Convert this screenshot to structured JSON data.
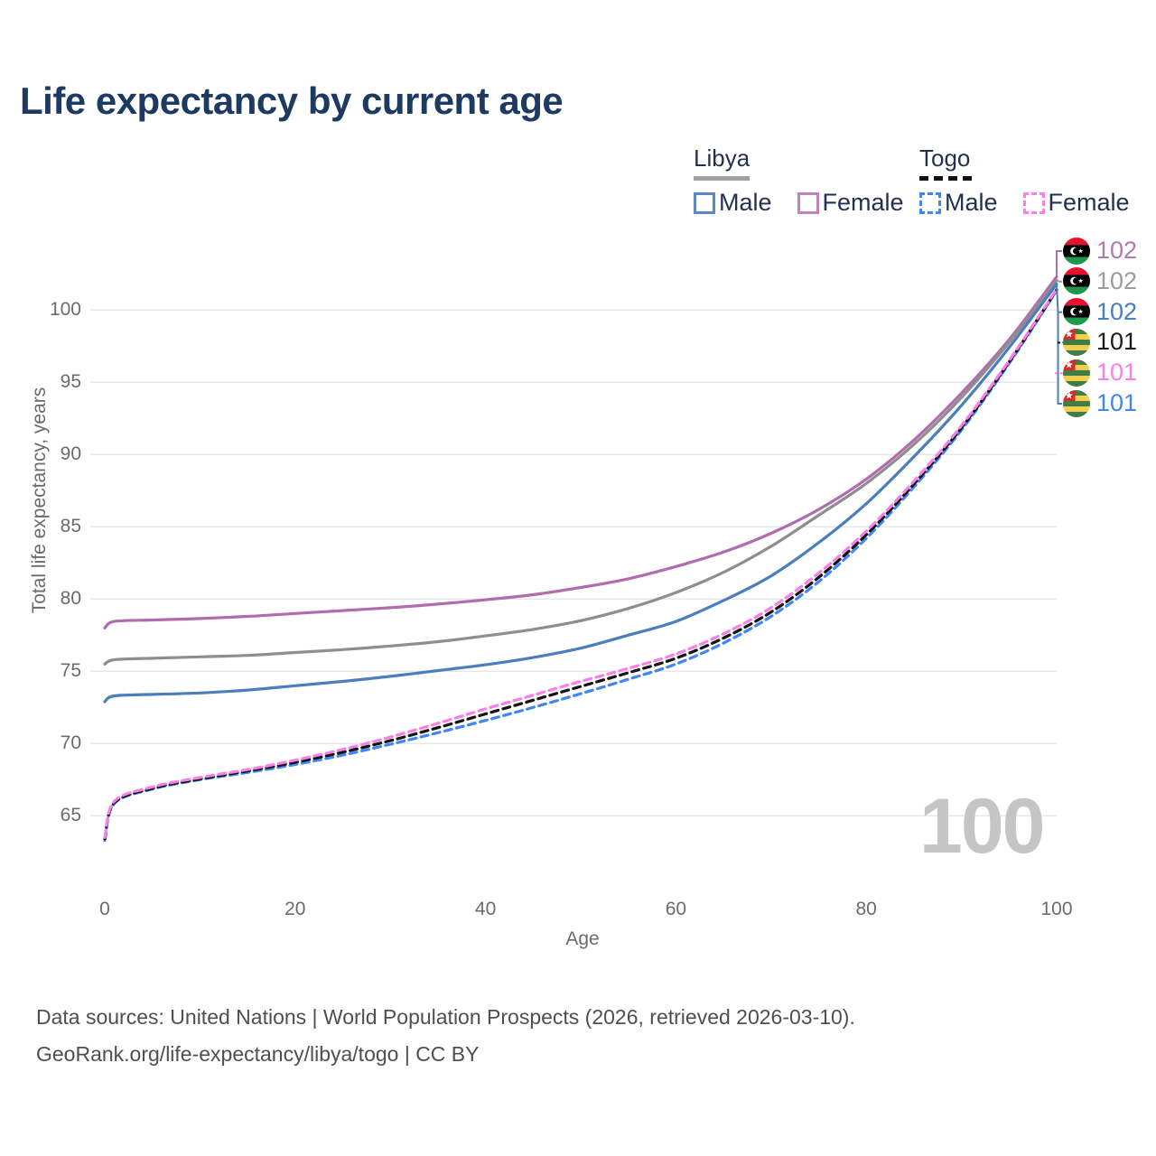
{
  "title": "Life expectancy by current age",
  "legend": {
    "libya": {
      "label": "Libya",
      "male": "Male",
      "female": "Female"
    },
    "togo": {
      "label": "Togo",
      "male": "Male",
      "female": "Female"
    }
  },
  "watermark": "100",
  "end_labels": [
    {
      "country": "libya",
      "value": "102",
      "color": "#b279ae"
    },
    {
      "country": "libya",
      "value": "102",
      "color": "#9c9c9c"
    },
    {
      "country": "libya",
      "value": "102",
      "color": "#4a7ebc"
    },
    {
      "country": "togo",
      "value": "101",
      "color": "#1c1c1c"
    },
    {
      "country": "togo",
      "value": "101",
      "color": "#fc7ee6"
    },
    {
      "country": "togo",
      "value": "101",
      "color": "#4286f5"
    }
  ],
  "footer": {
    "line1": "Data sources: United Nations | World Population Prospects (2026, retrieved 2026-03-10).",
    "line2": "GeoRank.org/life-expectancy/libya/togo | CC BY"
  },
  "colors": {
    "grid": "#e8e8e8",
    "axis_text": "#6b6b6b",
    "title_text": "#1d3a63"
  },
  "chart_data": {
    "type": "line",
    "title": "Life expectancy by current age",
    "xlabel": "Age",
    "ylabel": "Total life expectancy, years",
    "xlim": [
      0,
      100
    ],
    "ylim": [
      62,
      104
    ],
    "x_ticks": [
      0,
      20,
      40,
      60,
      80,
      100
    ],
    "y_ticks": [
      65,
      70,
      75,
      80,
      85,
      90,
      95,
      100
    ],
    "grid": "horizontal",
    "legend_position": "top-right",
    "x": [
      0,
      1,
      5,
      10,
      15,
      20,
      25,
      30,
      35,
      40,
      45,
      50,
      55,
      60,
      65,
      70,
      75,
      80,
      85,
      90,
      95,
      100
    ],
    "series": [
      {
        "name": "Libya Female",
        "style": "solid",
        "color": "#b06cae",
        "values": [
          78.0,
          78.45,
          78.55,
          78.65,
          78.8,
          79.0,
          79.2,
          79.4,
          79.65,
          79.95,
          80.3,
          80.8,
          81.4,
          82.25,
          83.25,
          84.55,
          86.2,
          88.3,
          91.0,
          94.25,
          97.95,
          102.3
        ]
      },
      {
        "name": "Libya Both sexes",
        "style": "solid",
        "color": "#8e8e8e",
        "values": [
          75.5,
          75.8,
          75.9,
          76.0,
          76.1,
          76.3,
          76.5,
          76.75,
          77.05,
          77.45,
          77.9,
          78.5,
          79.35,
          80.45,
          81.85,
          83.65,
          85.8,
          88.0,
          90.7,
          93.95,
          97.75,
          102.05
        ]
      },
      {
        "name": "Libya Male",
        "style": "solid",
        "color": "#4a7ebc",
        "values": [
          72.9,
          73.3,
          73.4,
          73.5,
          73.7,
          74.0,
          74.3,
          74.65,
          75.05,
          75.45,
          75.95,
          76.6,
          77.5,
          78.45,
          79.9,
          81.6,
          83.9,
          86.6,
          89.85,
          93.4,
          97.4,
          101.8
        ]
      },
      {
        "name": "Togo Male",
        "style": "dashed",
        "color": "#4286f5",
        "values": [
          63.3,
          65.85,
          66.85,
          67.5,
          68.0,
          68.55,
          69.2,
          69.95,
          70.75,
          71.6,
          72.5,
          73.45,
          74.45,
          75.5,
          76.95,
          78.8,
          81.2,
          84.2,
          87.75,
          91.7,
          96.3,
          101.35
        ]
      },
      {
        "name": "Togo Both sexes",
        "style": "dashed",
        "color": "#141414",
        "values": [
          63.4,
          65.9,
          66.9,
          67.55,
          68.1,
          68.7,
          69.4,
          70.2,
          71.1,
          72.05,
          73.0,
          73.95,
          74.9,
          75.9,
          77.3,
          79.1,
          81.5,
          84.45,
          87.95,
          91.85,
          96.4,
          101.4
        ]
      },
      {
        "name": "Togo Female",
        "style": "dashed",
        "color": "#fc7ee6",
        "values": [
          63.5,
          66.0,
          67.0,
          67.65,
          68.2,
          68.85,
          69.6,
          70.45,
          71.4,
          72.4,
          73.35,
          74.3,
          75.2,
          76.2,
          77.6,
          79.4,
          81.8,
          84.7,
          88.15,
          92.0,
          96.5,
          101.45
        ]
      }
    ]
  }
}
